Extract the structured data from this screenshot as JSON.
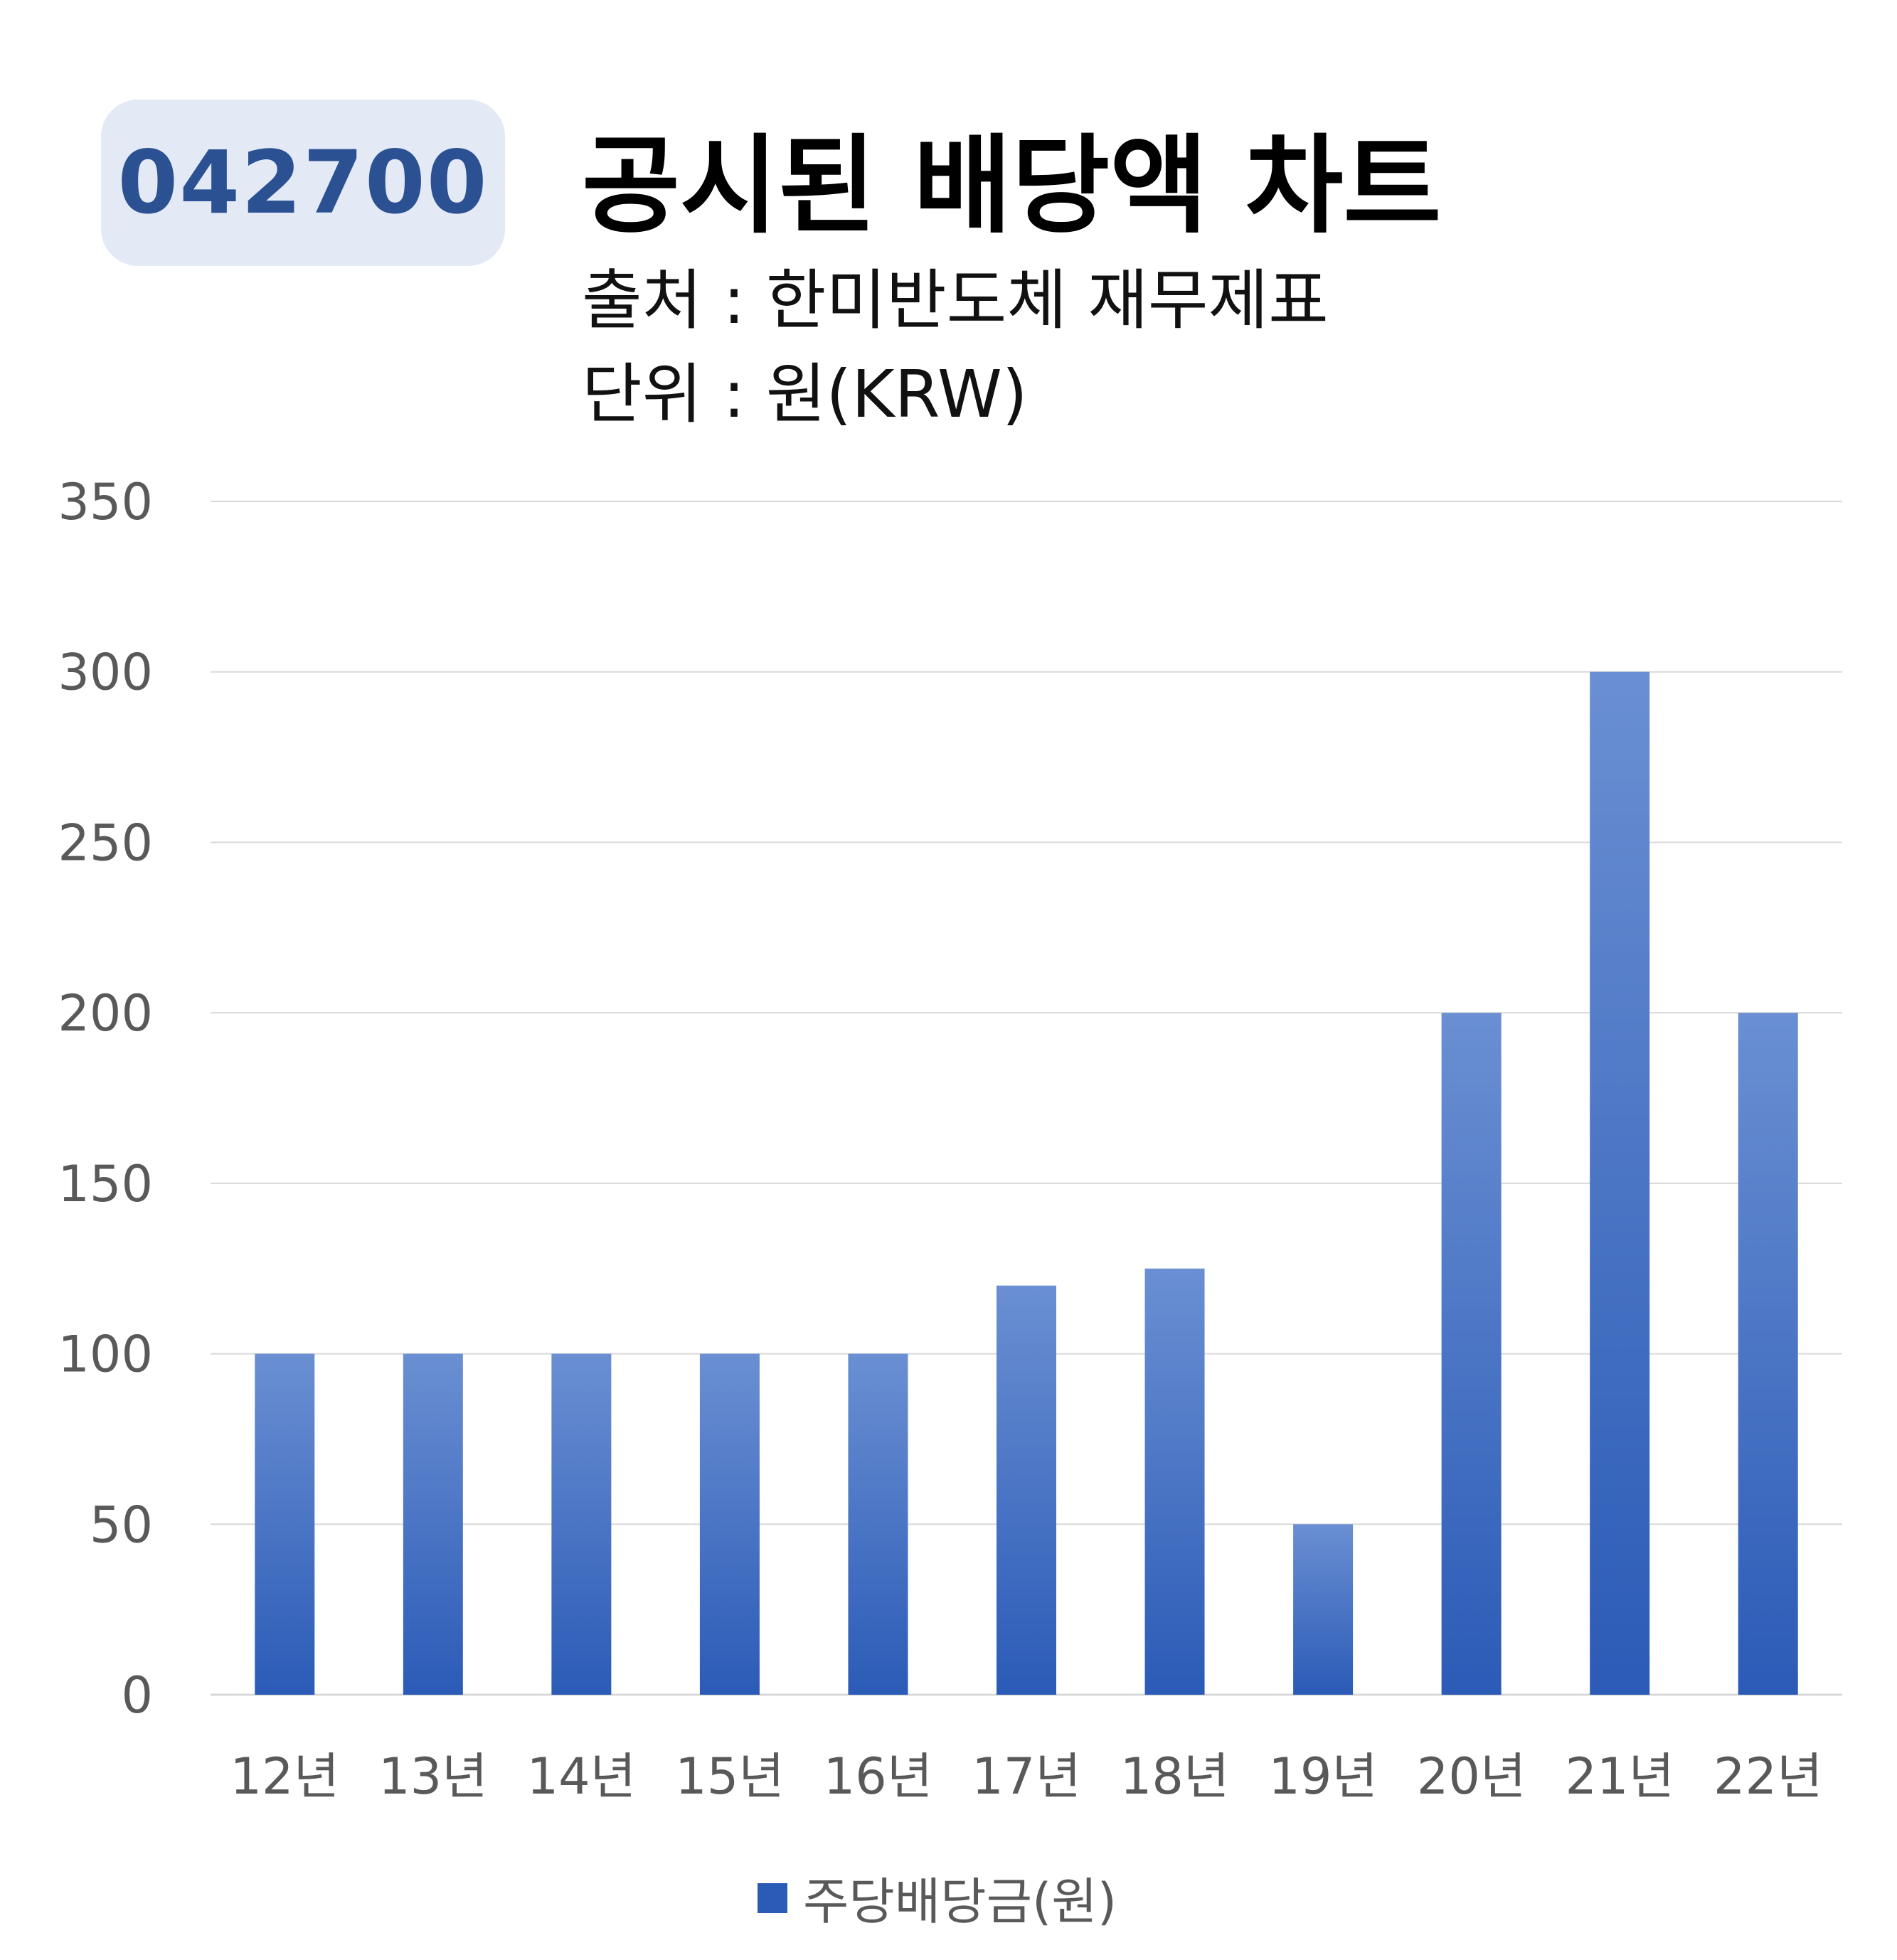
{
  "header": {
    "ticker": "042700",
    "title": "공시된 배당액 차트",
    "source": "출처 : 한미반도체 재무제표",
    "unit": "단위 : 원(KRW)"
  },
  "colors": {
    "badge_bg": "#e3e9f5",
    "badge_text": "#2b5193",
    "bar_top": "#6a8fd2",
    "bar_bottom": "#2b5bb7",
    "grid": "#d9d9d9",
    "tick_text": "#595959"
  },
  "chart_data": {
    "type": "bar",
    "title": "공시된 배당액 차트",
    "categories": [
      "12년",
      "13년",
      "14년",
      "15년",
      "16년",
      "17년",
      "18년",
      "19년",
      "20년",
      "21년",
      "22년"
    ],
    "series": [
      {
        "name": "주당배당금(원)",
        "values": [
          100,
          100,
          100,
          100,
          100,
          120,
          125,
          50,
          200,
          300,
          200
        ]
      }
    ],
    "ylim": [
      0,
      350
    ],
    "yticks": [
      0,
      50,
      100,
      150,
      200,
      250,
      300,
      350
    ],
    "grid": true,
    "legend": "bottom-center"
  }
}
